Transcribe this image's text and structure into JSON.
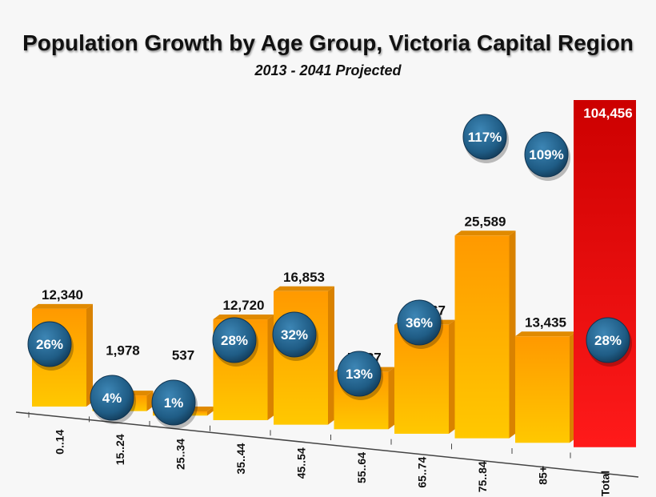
{
  "chart_data": {
    "type": "bar",
    "title": "Population Growth by Age Group, Victoria Capital Region",
    "subtitle": "2013 - 2041 Projected",
    "categories": [
      "0..14",
      "15..24",
      "25..34",
      "35..44",
      "45..54",
      "55..64",
      "65..74",
      "75..84",
      "85+",
      "Total"
    ],
    "values": [
      12340,
      1978,
      537,
      12720,
      16853,
      7237,
      13767,
      25589,
      13435,
      104456
    ],
    "value_labels": [
      "12,340",
      "1,978",
      "537",
      "12,720",
      "16,853",
      "7,237",
      "13,767",
      "25,589",
      "13,435",
      "104,456"
    ],
    "percent_labels": [
      "26%",
      "4%",
      "1%",
      "28%",
      "32%",
      "13%",
      "36%",
      "117%",
      "109%",
      "28%"
    ],
    "colors": {
      "bar_top": "#ff9900",
      "bar_bottom": "#ffc800",
      "total_top": "#cc0000",
      "total_bottom": "#ff1a1a",
      "bubble": "#1f5c85"
    },
    "style": "3d-bar",
    "grid": false,
    "legend": "none"
  }
}
